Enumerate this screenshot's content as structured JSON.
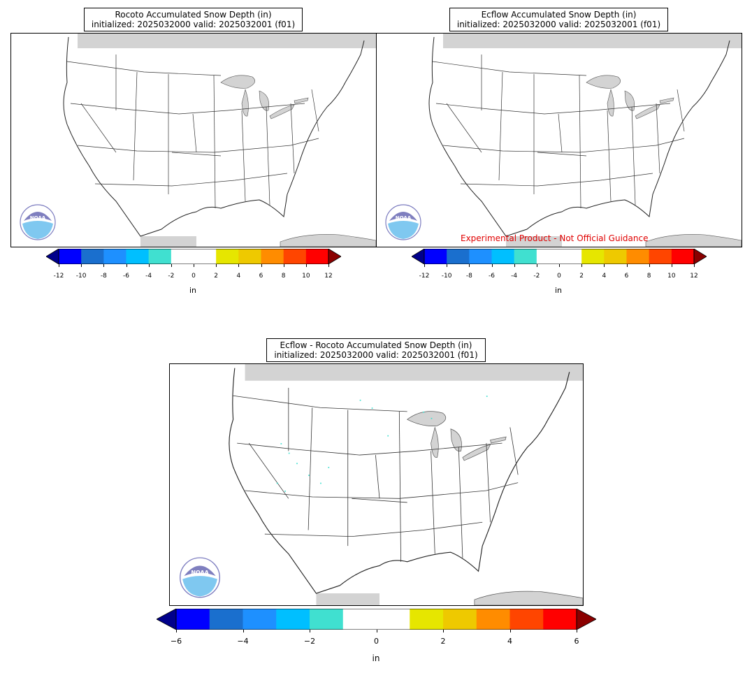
{
  "panels": [
    {
      "title_line1": "Rocoto Accumulated Snow Depth (in)",
      "title_line2": "initialized: 2025032000 valid: 2025032001 (f01)"
    },
    {
      "title_line1": "Ecflow Accumulated Snow Depth (in)",
      "title_line2": "initialized: 2025032000 valid: 2025032001 (f01)",
      "note": "Experimental Product - Not Official Guidance"
    },
    {
      "title_line1": "Ecflow - Rocoto Accumulated Snow Depth (in)",
      "title_line2": "initialized: 2025032000 valid: 2025032001 (f01)"
    }
  ],
  "colorbar_small": {
    "ticks": [
      "-12",
      "-10",
      "-8",
      "-6",
      "-4",
      "-2",
      "0",
      "2",
      "4",
      "6",
      "8",
      "10",
      "12"
    ],
    "units": "in"
  },
  "colorbar_large": {
    "ticks": [
      "−6",
      "−4",
      "−2",
      "0",
      "2",
      "4",
      "6"
    ],
    "units": "in"
  },
  "colors": {
    "under": "#00008b",
    "bins": [
      "#0000ff",
      "#1a6fce",
      "#1e90ff",
      "#00bfff",
      "#40e0d0",
      "#ffffff",
      "#ffffff",
      "#e6e600",
      "#eec900",
      "#ff8c00",
      "#ff4500",
      "#ff0000"
    ],
    "over": "#8b0000",
    "canada_mask": "#d3d3d3",
    "state_lines": "#333333",
    "note": "#e00000"
  },
  "logo": {
    "text": "NOAA"
  }
}
